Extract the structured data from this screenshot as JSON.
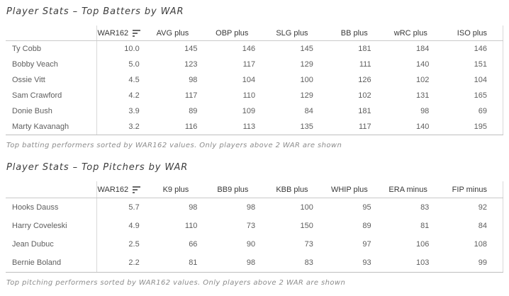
{
  "colors": {
    "background": "#ffffff",
    "title_text": "#3d3d3d",
    "header_text": "#383838",
    "cell_text": "#5e5e5e",
    "caption_text": "#8c8c8c",
    "grid_line": "#c9c9c9",
    "divider_line": "#d9d9d9"
  },
  "chart_data": [
    {
      "type": "table",
      "title": "Player Stats – Top Batters by WAR",
      "caption": "Top batting performers sorted by WAR162 values. Only players above 2 WAR are shown",
      "sort": {
        "column": "WAR162",
        "direction": "descending",
        "icon": "sort-descending-icon"
      },
      "columns": [
        "WAR162",
        "AVG plus",
        "OBP plus",
        "SLG plus",
        "BB plus",
        "wRC plus",
        "ISO plus"
      ],
      "rows": [
        {
          "player": "Ty Cobb",
          "values": [
            "10.0",
            "145",
            "146",
            "145",
            "181",
            "184",
            "146"
          ]
        },
        {
          "player": "Bobby Veach",
          "values": [
            "5.0",
            "123",
            "117",
            "129",
            "111",
            "140",
            "151"
          ]
        },
        {
          "player": "Ossie Vitt",
          "values": [
            "4.5",
            "98",
            "104",
            "100",
            "126",
            "102",
            "104"
          ]
        },
        {
          "player": "Sam Crawford",
          "values": [
            "4.2",
            "117",
            "110",
            "129",
            "102",
            "131",
            "165"
          ]
        },
        {
          "player": "Donie Bush",
          "values": [
            "3.9",
            "89",
            "109",
            "84",
            "181",
            "98",
            "69"
          ]
        },
        {
          "player": "Marty Kavanagh",
          "values": [
            "3.2",
            "116",
            "113",
            "135",
            "117",
            "140",
            "195"
          ]
        }
      ]
    },
    {
      "type": "table",
      "title": "Player Stats – Top Pitchers by WAR",
      "caption": "Top pitching performers sorted by WAR162 values. Only players above 2 WAR are shown",
      "sort": {
        "column": "WAR162",
        "direction": "descending",
        "icon": "sort-descending-icon"
      },
      "columns": [
        "WAR162",
        "K9 plus",
        "BB9 plus",
        "KBB plus",
        "WHIP plus",
        "ERA minus",
        "FIP minus"
      ],
      "rows": [
        {
          "player": "Hooks Dauss",
          "values": [
            "5.7",
            "98",
            "98",
            "100",
            "95",
            "83",
            "92"
          ]
        },
        {
          "player": "Harry Coveleski",
          "values": [
            "4.9",
            "110",
            "73",
            "150",
            "89",
            "81",
            "84"
          ]
        },
        {
          "player": "Jean Dubuc",
          "values": [
            "2.5",
            "66",
            "90",
            "73",
            "97",
            "106",
            "108"
          ]
        },
        {
          "player": "Bernie Boland",
          "values": [
            "2.2",
            "81",
            "98",
            "83",
            "93",
            "103",
            "99"
          ]
        }
      ]
    }
  ]
}
